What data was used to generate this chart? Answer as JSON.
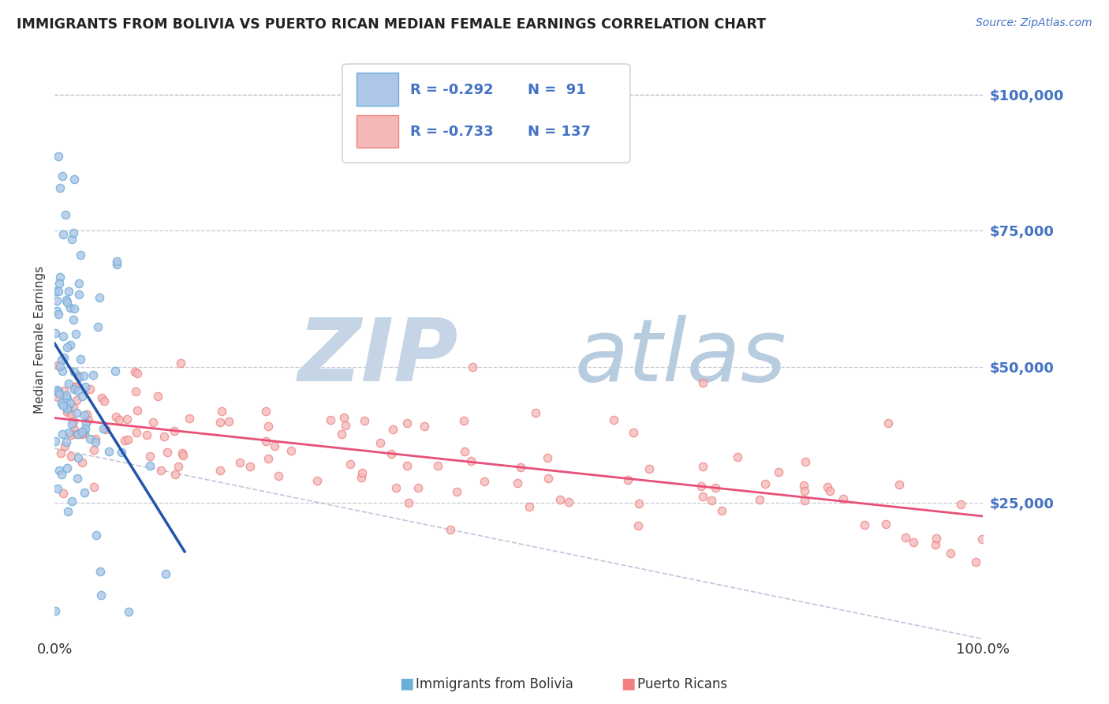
{
  "title": "IMMIGRANTS FROM BOLIVIA VS PUERTO RICAN MEDIAN FEMALE EARNINGS CORRELATION CHART",
  "source": "Source: ZipAtlas.com",
  "ylabel": "Median Female Earnings",
  "x_min": 0.0,
  "x_max": 1.0,
  "y_min": 0,
  "y_max": 110000,
  "y_ticks": [
    25000,
    50000,
    75000,
    100000
  ],
  "y_tick_labels": [
    "$25,000",
    "$50,000",
    "$75,000",
    "$100,000"
  ],
  "series1_color": "#6baed6",
  "series1_face": "#aec6e8",
  "series2_color": "#f08080",
  "series2_face": "#f4b8b8",
  "trend1_color": "#2255aa",
  "trend2_color": "#e8507a",
  "watermark_color": "#c8d8e8",
  "r1": -0.292,
  "n1": 91,
  "r2": -0.733,
  "n2": 137,
  "legend1_label": "R = -0.292   N =  91",
  "legend2_label": "R = -0.733   N = 137",
  "bottom_label1": "Immigrants from Bolivia",
  "bottom_label2": "Puerto Ricans"
}
